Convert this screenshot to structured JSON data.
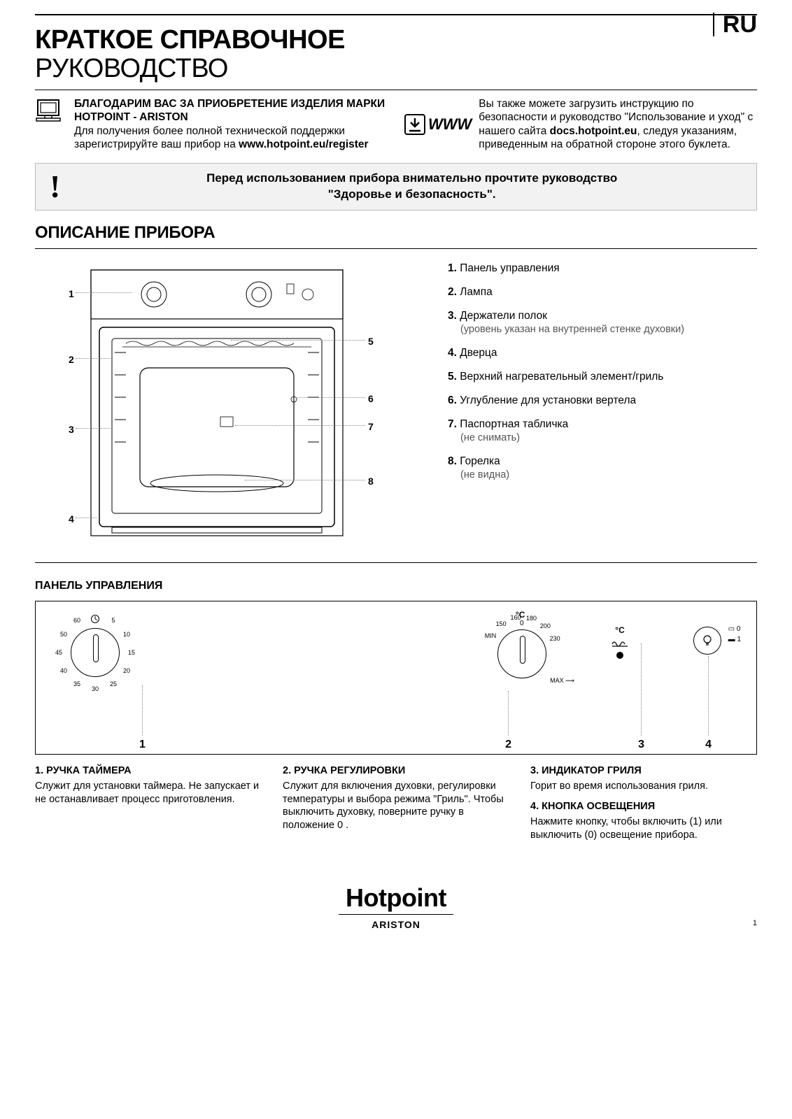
{
  "lang": "RU",
  "title_bold": "КРАТКОЕ СПРАВОЧНОЕ",
  "title_light": "РУКОВОДСТВО",
  "intro": {
    "thanks_line": "БЛАГОДАРИМ ВАС ЗА ПРИОБРЕТЕНИЕ ИЗДЕЛИЯ МАРКИ HOTPOINT - ARISTON",
    "register_prefix": "Для получения более полной технической поддержки зарегистрируйте ваш прибор на ",
    "register_url": "www.hotpoint.eu/register",
    "www_label": "WWW",
    "download_prefix": "Вы также можете загрузить инструкцию по безопасности и руководство \"Использование и уход\" с нашего сайта ",
    "docs_url": "docs.hotpoint.eu",
    "download_suffix": ", следуя указаниям, приведенным на обратной стороне этого буклета."
  },
  "safety_line1": "Перед использованием прибора внимательно прочтите руководство",
  "safety_line2": "\"Здоровье и безопасность\".",
  "section_desc": "ОПИСАНИЕ ПРИБОРА",
  "legend": [
    {
      "n": "1.",
      "t": "Панель управления"
    },
    {
      "n": "2.",
      "t": "Лампа"
    },
    {
      "n": "3.",
      "t": "Держатели полок",
      "note": "(уровень указан на внутренней стенке духовки)"
    },
    {
      "n": "4.",
      "t": "Дверца"
    },
    {
      "n": "5.",
      "t": "Верхний нагревательный элемент/гриль"
    },
    {
      "n": "6.",
      "t": "Углубление для установки вертела"
    },
    {
      "n": "7.",
      "t": "Паспортная табличка",
      "note": "(не снимать)"
    },
    {
      "n": "8.",
      "t": "Горелка",
      "note": "(не видна)"
    }
  ],
  "panel_heading": "ПАНЕЛЬ УПРАВЛЕНИЯ",
  "timer_ticks": [
    "5",
    "10",
    "15",
    "20",
    "25",
    "30",
    "35",
    "40",
    "45",
    "50",
    "60"
  ],
  "temp_label": "°C",
  "temp_top": "0",
  "temp_ticks_left": [
    "MIN",
    "150",
    "160",
    "180",
    "200",
    "230"
  ],
  "temp_max": "MAX",
  "grill_label": "°C",
  "light_states": [
    "0",
    "1"
  ],
  "panel_callouts": [
    "1",
    "2",
    "3",
    "4"
  ],
  "controls": {
    "c1_title": "1. РУЧКА ТАЙМЕРА",
    "c1_body": "Служит для установки таймера. Не запускает и не останавливает процесс приготовления.",
    "c2_title": "2. РУЧКА РЕГУЛИРОВКИ",
    "c2_body": "Служит для включения духовки, регулировки температуры и выбора режима \"Гриль\". Чтобы выключить духовку, поверните ручку в положение  0 .",
    "c3_title": "3. ИНДИКАТОР ГРИЛЯ",
    "c3_body": "Горит во время использования гриля.",
    "c4_title": "4. КНОПКА ОСВЕЩЕНИЯ",
    "c4_body": "Нажмите кнопку, чтобы включить (1) или выключить (0) освещение прибора."
  },
  "brand": "Hotpoint",
  "subbrand": "ARISTON",
  "page_number": "1"
}
